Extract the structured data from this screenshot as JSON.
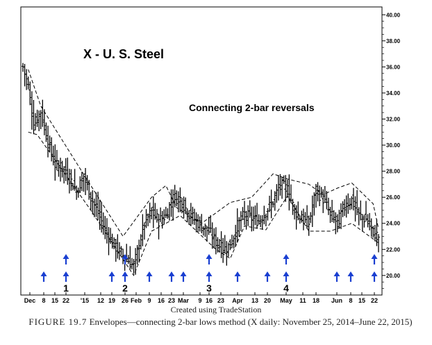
{
  "chart_data": {
    "type": "ohlc",
    "title": "X - U. S. Steel",
    "annotation": "Connecting 2-bar reversals",
    "ylim": [
      18.5,
      40.6
    ],
    "y_ticks": [
      "40.00",
      "38.00",
      "36.00",
      "34.00",
      "32.00",
      "30.00",
      "28.00",
      "26.00",
      "24.00",
      "22.00",
      "20.00"
    ],
    "x_ticks": [
      "Dec",
      "8",
      "15",
      "22",
      "'15",
      "12",
      "19",
      "26",
      "Feb",
      "9",
      "16",
      "23",
      "Mar",
      "9",
      "16",
      "23",
      "Apr",
      "13",
      "20",
      "May",
      "11",
      "18",
      "Jun",
      "8",
      "15",
      "22"
    ],
    "grid": false,
    "close_path": [
      [
        0,
        36.0
      ],
      [
        3,
        34.5
      ],
      [
        6,
        31.5
      ],
      [
        10,
        32.6
      ],
      [
        14,
        30.2
      ],
      [
        18,
        28.5
      ],
      [
        22,
        28.2
      ],
      [
        26,
        27.5
      ],
      [
        30,
        26.5
      ],
      [
        34,
        27.6
      ],
      [
        38,
        26.0
      ],
      [
        42,
        24.8
      ],
      [
        46,
        23.5
      ],
      [
        50,
        22.5
      ],
      [
        54,
        21.8
      ],
      [
        58,
        21.3
      ],
      [
        62,
        20.7
      ],
      [
        65,
        22.4
      ],
      [
        68,
        24.0
      ],
      [
        72,
        24.9
      ],
      [
        76,
        24.2
      ],
      [
        80,
        24.6
      ],
      [
        84,
        26.0
      ],
      [
        88,
        25.9
      ],
      [
        92,
        24.9
      ],
      [
        96,
        24.3
      ],
      [
        100,
        23.8
      ],
      [
        104,
        23.4
      ],
      [
        108,
        22.6
      ],
      [
        112,
        22.0
      ],
      [
        116,
        22.3
      ],
      [
        120,
        23.8
      ],
      [
        124,
        24.7
      ],
      [
        128,
        24.4
      ],
      [
        132,
        24.2
      ],
      [
        136,
        24.9
      ],
      [
        140,
        25.7
      ],
      [
        144,
        27.0
      ],
      [
        148,
        26.6
      ],
      [
        152,
        25.0
      ],
      [
        156,
        24.3
      ],
      [
        160,
        24.0
      ],
      [
        164,
        26.5
      ],
      [
        168,
        25.9
      ],
      [
        172,
        24.7
      ],
      [
        176,
        24.0
      ],
      [
        180,
        25.4
      ],
      [
        184,
        25.8
      ],
      [
        188,
        24.6
      ],
      [
        192,
        24.3
      ],
      [
        196,
        23.3
      ],
      [
        199,
        23.0
      ]
    ],
    "upper_envelope": [
      [
        3,
        35.8
      ],
      [
        10,
        33.0
      ],
      [
        32,
        28.2
      ],
      [
        56,
        23.0
      ],
      [
        72,
        26.0
      ],
      [
        80,
        26.9
      ],
      [
        86,
        25.2
      ],
      [
        100,
        24.0
      ],
      [
        116,
        25.6
      ],
      [
        128,
        26.0
      ],
      [
        140,
        27.8
      ],
      [
        148,
        27.4
      ],
      [
        160,
        27.0
      ],
      [
        168,
        26.2
      ],
      [
        176,
        26.7
      ],
      [
        184,
        27.1
      ],
      [
        196,
        25.5
      ],
      [
        199,
        23.6
      ]
    ],
    "lower_envelope": [
      [
        3,
        31.0
      ],
      [
        8,
        30.8
      ],
      [
        38,
        25.0
      ],
      [
        62,
        20.0
      ],
      [
        72,
        23.4
      ],
      [
        88,
        24.6
      ],
      [
        108,
        22.0
      ],
      [
        116,
        21.3
      ],
      [
        124,
        23.8
      ],
      [
        136,
        23.5
      ],
      [
        148,
        26.1
      ],
      [
        160,
        23.4
      ],
      [
        172,
        23.4
      ],
      [
        184,
        24.0
      ],
      [
        199,
        22.5
      ]
    ],
    "arrow_x_ticks": [
      "8",
      "22",
      "19",
      "26",
      "9",
      "23",
      "Mar",
      "16",
      "Apr",
      "20",
      "May",
      "Jun",
      "8",
      "22"
    ],
    "doubled_arrow_ticks": [
      "22",
      "26",
      "16",
      "May"
    ],
    "arrow_labels": [
      {
        "text": "1",
        "tick": "22"
      },
      {
        "text": "2",
        "tick": "26"
      },
      {
        "text": "3",
        "tick": "16"
      },
      {
        "text": "4",
        "tick": "May"
      }
    ]
  },
  "credit": "Created using TradeStation",
  "figure_label": "FIGURE 19.7",
  "figure_caption": "Envelopes—connecting 2-bar lows method (X daily: November 25, 2014–June 22, 2015)"
}
